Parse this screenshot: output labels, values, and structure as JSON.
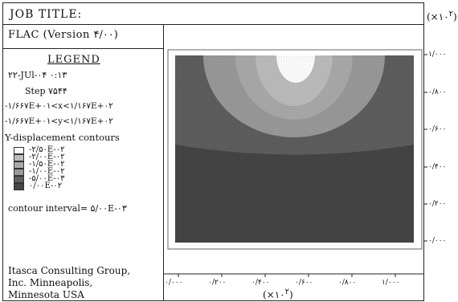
{
  "header": {
    "job_title": "JOB TITLE:"
  },
  "version": "FLAC (Version ۴/۰۰)",
  "legend": {
    "title": "LEGEND",
    "date": "۲۲-JUl-۰۴   ۰:۱۳",
    "step": "Step     ۷۵۴۴",
    "x_range": "-۱/۶۶۷E+۰۱<x<۱/۱۶۷E+۰۲",
    "y_range": "-۱/۶۶۷E+۰۱<y<۱/۱۶۷E+۰۲",
    "contour_heading": "Y-displacement contours",
    "contour_levels": [
      "-۲/۵۰E-۰۲",
      "-۲/۰۰E-۰۲",
      "-۱/۵۰E-۰۲",
      "-۱/۰۰E-۰۲",
      "-۵/۰۰E-۰۳",
      "۰/۰۰E-۰۲"
    ],
    "contour_colors": [
      "#ffffff",
      "#bdbdbd",
      "#aaaaaa",
      "#9a9a9a",
      "#5e5e5e",
      "#454545"
    ],
    "contour_interval": "contour interval= ۵/۰۰E-۰۳"
  },
  "credits": {
    "line1": "Itasca Consulting Group,",
    "line2": "Inc.  Minneapolis,",
    "line3": "Minnesota USA"
  },
  "axes": {
    "y_multiplier": "(×۱۰",
    "y_multiplier_exp": "۲",
    "x_multiplier": "(×۱۰",
    "x_multiplier_exp": "۲",
    "y_ticks": [
      "۱/۰۰۰",
      "۰/۸۰۰",
      "۰/۶۰۰",
      "۰/۴۰۰",
      "۰/۲۰۰",
      "۰/۰۰۰"
    ],
    "x_ticks": [
      "۰/۰۰۰",
      "۰/۲۰۰",
      "۰/۴۰۰",
      "۰/۶۰۰",
      "۰/۸۰۰",
      "۱/۰۰۰"
    ]
  }
}
